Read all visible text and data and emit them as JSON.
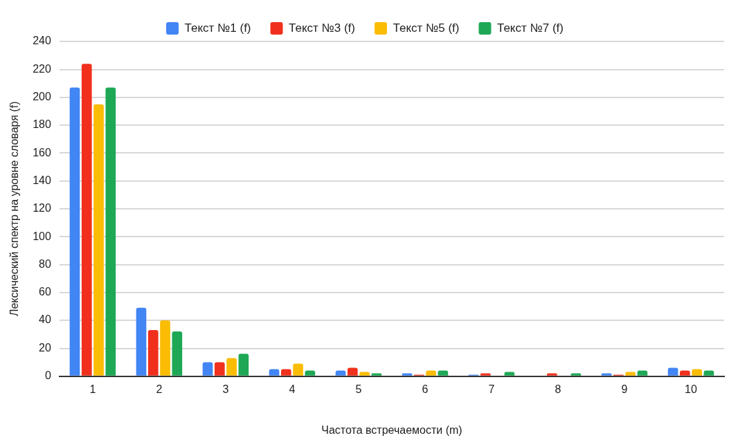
{
  "chart_data": {
    "type": "bar",
    "xlabel": "Частота встречаемости (m)",
    "ylabel": "Лексический спектр на уровне словаря (f)",
    "categories": [
      "1",
      "2",
      "3",
      "4",
      "5",
      "6",
      "7",
      "8",
      "9",
      "10"
    ],
    "series": [
      {
        "name": "Текст №1 (f)",
        "color": "#4285f4",
        "values": [
          207,
          49,
          10,
          5,
          4,
          2,
          1,
          0,
          2,
          6
        ]
      },
      {
        "name": "Текст №3 (f)",
        "color": "#f0301c",
        "values": [
          224,
          33,
          10,
          5,
          6,
          1,
          2,
          2,
          1,
          4
        ]
      },
      {
        "name": "Текст №5 (f)",
        "color": "#fbbc04",
        "values": [
          195,
          40,
          13,
          9,
          3,
          4,
          0,
          0,
          3,
          5
        ]
      },
      {
        "name": "Текст №7 (f)",
        "color": "#1ea855",
        "values": [
          207,
          32,
          16,
          4,
          2,
          4,
          3,
          2,
          4,
          4
        ]
      }
    ],
    "ylim": [
      0,
      240
    ],
    "yticks": [
      0,
      20,
      40,
      60,
      80,
      100,
      120,
      140,
      160,
      180,
      200,
      220,
      240
    ],
    "grid": "y",
    "legend": "top"
  }
}
